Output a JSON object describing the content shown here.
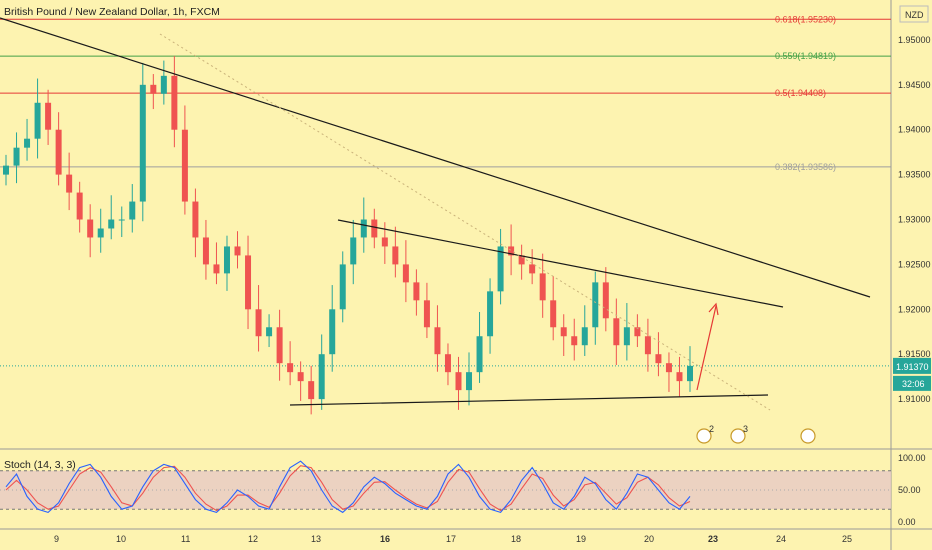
{
  "header": {
    "symbol_title": "British Pound / New Zealand Dollar, 1h, FXCM"
  },
  "currency_label": "NZD",
  "stoch_label": "Stoch (14, 3, 3)",
  "colors": {
    "bg": "#fdf3b0",
    "up": "#26a69a",
    "down": "#ef5350",
    "fib_red": "#e53935",
    "fib_green": "#43a047",
    "fib_gray": "#9e9e9e",
    "trend": "#1a1a1a",
    "arrow": "#e53935",
    "stoch_k": "#2962ff",
    "stoch_d": "#ef5350",
    "stoch_band": "#e7c9c6"
  },
  "chart_data": {
    "type": "candlestick",
    "title": "British Pound / New Zealand Dollar, 1h, FXCM",
    "x_ticks": [
      "9",
      "10",
      "11",
      "12",
      "13",
      "16",
      "17",
      "18",
      "19",
      "20",
      "23",
      "24",
      "25"
    ],
    "y_ticks": [
      "1.95000",
      "1.94500",
      "1.94000",
      "1.93500",
      "1.93000",
      "1.92500",
      "1.92000",
      "1.91500",
      "1.91000"
    ],
    "ylim": [
      1.905,
      1.954
    ],
    "last_price": {
      "value": "1.91370",
      "countdown": "32:06"
    },
    "fib_levels": [
      {
        "label": "0.618(1.95230)",
        "value": 1.9523,
        "color": "#e53935"
      },
      {
        "label": "0.559(1.94819)",
        "value": 1.94819,
        "color": "#43a047"
      },
      {
        "label": "0.5(1.94408)",
        "value": 1.94408,
        "color": "#e53935"
      },
      {
        "label": "0.382(1.93586)",
        "value": 1.93586,
        "color": "#9e9e9e"
      }
    ],
    "close_series": [
      1.936,
      1.938,
      1.939,
      1.943,
      1.94,
      1.935,
      1.933,
      1.93,
      1.928,
      1.929,
      1.93,
      1.93,
      1.932,
      1.945,
      1.944,
      1.946,
      1.94,
      1.932,
      1.928,
      1.925,
      1.924,
      1.927,
      1.926,
      1.92,
      1.917,
      1.918,
      1.914,
      1.913,
      1.912,
      1.91,
      1.915,
      1.92,
      1.925,
      1.928,
      1.93,
      1.928,
      1.927,
      1.925,
      1.923,
      1.921,
      1.918,
      1.915,
      1.913,
      1.911,
      1.913,
      1.917,
      1.922,
      1.927,
      1.926,
      1.925,
      1.924,
      1.921,
      1.918,
      1.917,
      1.916,
      1.918,
      1.923,
      1.919,
      1.916,
      1.918,
      1.917,
      1.915,
      1.914,
      1.913,
      1.912,
      1.9137
    ],
    "stochastic": {
      "name": "Stoch (14, 3, 3)",
      "y_ticks": [
        "100.00",
        "50.00",
        "0.00"
      ],
      "bands": [
        20,
        80
      ],
      "k": [
        55,
        75,
        40,
        20,
        15,
        30,
        60,
        85,
        90,
        70,
        40,
        20,
        25,
        55,
        80,
        90,
        85,
        60,
        35,
        20,
        15,
        30,
        50,
        40,
        25,
        20,
        55,
        85,
        95,
        80,
        50,
        25,
        15,
        30,
        55,
        70,
        60,
        45,
        35,
        25,
        20,
        40,
        75,
        90,
        70,
        40,
        20,
        15,
        35,
        65,
        85,
        60,
        30,
        20,
        40,
        70,
        60,
        35,
        20,
        45,
        75,
        70,
        50,
        30,
        20,
        40
      ],
      "d": [
        50,
        65,
        50,
        30,
        20,
        25,
        50,
        75,
        85,
        78,
        55,
        30,
        25,
        45,
        70,
        85,
        87,
        70,
        45,
        28,
        18,
        25,
        42,
        42,
        30,
        23,
        45,
        72,
        88,
        85,
        62,
        35,
        20,
        25,
        45,
        62,
        63,
        50,
        38,
        28,
        22,
        32,
        62,
        82,
        78,
        52,
        28,
        18,
        28,
        52,
        75,
        68,
        42,
        25,
        35,
        58,
        62,
        45,
        28,
        38,
        62,
        70,
        58,
        38,
        25,
        32
      ]
    }
  }
}
